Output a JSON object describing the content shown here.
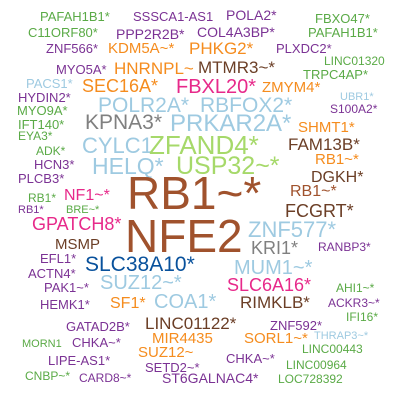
{
  "colors": {
    "brown": "#a0522d",
    "lightblue": "#9ecae1",
    "green": "#5aaa46",
    "lightgreen": "#a6d96a",
    "orange": "#f58c1e",
    "purple": "#7b3294",
    "pink": "#e7298a",
    "gray": "#808080",
    "darkbrown": "#6b3e26",
    "navy": "#08519c",
    "blue": "#2171b5"
  },
  "words": [
    {
      "text": "PAFAH1B1*",
      "color": "green"
    },
    {
      "text": "SSSCA1-AS1",
      "color": "purple"
    },
    {
      "text": "POLA2*",
      "color": "purple"
    },
    {
      "text": "FBXO47*",
      "color": "green"
    },
    {
      "text": "C11ORF80*",
      "color": "green"
    },
    {
      "text": "PPP2R2B*",
      "color": "purple"
    },
    {
      "text": "COL4A3BP*",
      "color": "purple"
    },
    {
      "text": "PAFAH1B1*",
      "color": "green"
    },
    {
      "text": "ZNF566*",
      "color": "purple"
    },
    {
      "text": "KDM5A~*",
      "color": "orange"
    },
    {
      "text": "PHKG2*",
      "color": "orange"
    },
    {
      "text": "PLXDC2*",
      "color": "purple"
    },
    {
      "text": "LINC01320",
      "color": "green"
    },
    {
      "text": "MYO5A*",
      "color": "purple"
    },
    {
      "text": "HNRNPL~",
      "color": "orange"
    },
    {
      "text": "MTMR3~*",
      "color": "darkbrown"
    },
    {
      "text": "TRPC4AP*",
      "color": "green"
    },
    {
      "text": "PACS1*",
      "color": "lightblue"
    },
    {
      "text": "SEC16A*",
      "color": "orange"
    },
    {
      "text": "FBXL20*",
      "color": "pink"
    },
    {
      "text": "ZMYM4*",
      "color": "orange"
    },
    {
      "text": "HYDIN2*",
      "color": "purple"
    },
    {
      "text": "UBR1*",
      "color": "lightblue"
    },
    {
      "text": "MYO9A*",
      "color": "green"
    },
    {
      "text": "POLR2A*",
      "color": "lightblue"
    },
    {
      "text": "RBFOX2*",
      "color": "lightblue"
    },
    {
      "text": "S100A2*",
      "color": "purple"
    },
    {
      "text": "IFT140*",
      "color": "green"
    },
    {
      "text": "KPNA3*",
      "color": "gray"
    },
    {
      "text": "PRKAR2A*",
      "color": "lightblue"
    },
    {
      "text": "SHMT1*",
      "color": "orange"
    },
    {
      "text": "EYA3*",
      "color": "green"
    },
    {
      "text": "ADK*",
      "color": "green"
    },
    {
      "text": "CYLC1",
      "color": "lightblue"
    },
    {
      "text": "ZFAND4*",
      "color": "lightgreen"
    },
    {
      "text": "FAM13B*",
      "color": "darkbrown"
    },
    {
      "text": "HCN3*",
      "color": "purple"
    },
    {
      "text": "RB1~*",
      "color": "orange"
    },
    {
      "text": "PLCB3*",
      "color": "purple"
    },
    {
      "text": "HELQ*",
      "color": "lightblue"
    },
    {
      "text": "USP32~*",
      "color": "lightgreen"
    },
    {
      "text": "DGKH*",
      "color": "darkbrown"
    },
    {
      "text": "RB1*",
      "color": "green"
    },
    {
      "text": "RB1~*",
      "color": "brown"
    },
    {
      "text": "NF1~*",
      "color": "pink"
    },
    {
      "text": "RB1~*",
      "color": "brown"
    },
    {
      "text": "RB1*",
      "color": "purple"
    },
    {
      "text": "BRE~*",
      "color": "green"
    },
    {
      "text": "FCGRT*",
      "color": "darkbrown"
    },
    {
      "text": "GPATCH8*",
      "color": "pink"
    },
    {
      "text": "ZNF577*",
      "color": "lightblue"
    },
    {
      "text": "NFE2",
      "color": "brown"
    },
    {
      "text": "KRI1*",
      "color": "gray"
    },
    {
      "text": "RANBP3*",
      "color": "purple"
    },
    {
      "text": "MSMP",
      "color": "darkbrown"
    },
    {
      "text": "EFL1*",
      "color": "purple"
    },
    {
      "text": "SLC38A10*",
      "color": "navy"
    },
    {
      "text": "MUM1~*",
      "color": "lightblue"
    },
    {
      "text": "ACTN4*",
      "color": "purple"
    },
    {
      "text": "PAK1~*",
      "color": "purple"
    },
    {
      "text": "SUZ12~*",
      "color": "lightblue"
    },
    {
      "text": "SLC6A16*",
      "color": "pink"
    },
    {
      "text": "AHI1~*",
      "color": "green"
    },
    {
      "text": "ACKR3~*",
      "color": "purple"
    },
    {
      "text": "HEMK1*",
      "color": "purple"
    },
    {
      "text": "SF1*",
      "color": "orange"
    },
    {
      "text": "COA1*",
      "color": "lightblue"
    },
    {
      "text": "RIMKLB*",
      "color": "darkbrown"
    },
    {
      "text": "IFI16*",
      "color": "green"
    },
    {
      "text": "GATAD2B*",
      "color": "purple"
    },
    {
      "text": "LINC01122*",
      "color": "darkbrown"
    },
    {
      "text": "ZNF592*",
      "color": "purple"
    },
    {
      "text": "MORN1",
      "color": "green"
    },
    {
      "text": "CHKA~*",
      "color": "purple"
    },
    {
      "text": "MIR4435",
      "color": "orange"
    },
    {
      "text": "SORL1~*",
      "color": "orange"
    },
    {
      "text": "THRAP3~*",
      "color": "lightblue"
    },
    {
      "text": "LINC00443",
      "color": "green"
    },
    {
      "text": "SUZ12~",
      "color": "orange"
    },
    {
      "text": "LIPE-AS1*",
      "color": "purple"
    },
    {
      "text": "CHKA~*",
      "color": "purple"
    },
    {
      "text": "SETD2~*",
      "color": "purple"
    },
    {
      "text": "LINC00964",
      "color": "green"
    },
    {
      "text": "CNBP~*",
      "color": "green"
    },
    {
      "text": "CARD8~*",
      "color": "purple"
    },
    {
      "text": "ST6GALNAC4*",
      "color": "purple"
    },
    {
      "text": "LOC728392",
      "color": "green"
    }
  ]
}
